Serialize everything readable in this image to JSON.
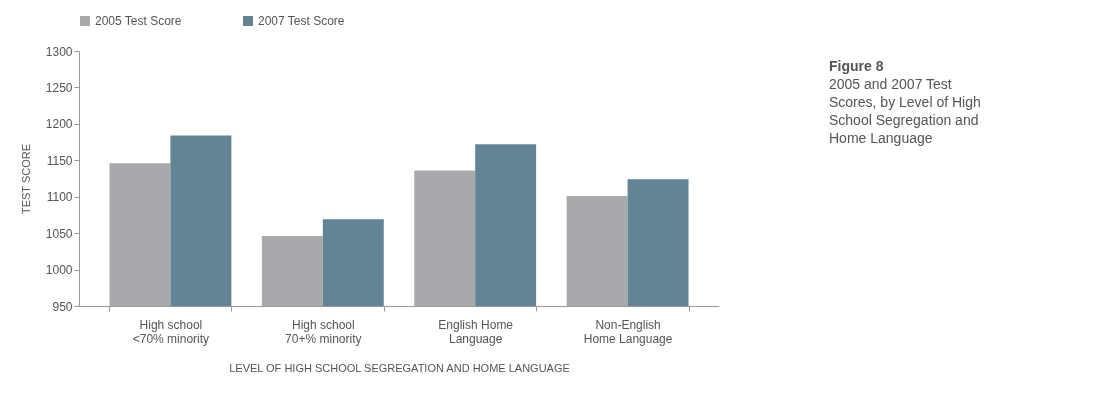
{
  "chart_data": {
    "type": "bar",
    "title": "Figure 8",
    "subtitle": "2005 and 2007 Test Scores, by Level of High School Segregation and Home Language",
    "xlabel": "LEVEL OF HIGH SCHOOL SEGREGATION AND HOME LANGUAGE",
    "ylabel": "TEST SCORE",
    "categories": [
      "High school\n<70% minority",
      "High school\n70+% minority",
      "English Home\nLanguage",
      "Non-English\nHome Language"
    ],
    "series": [
      {
        "name": "2005 Test Score",
        "color": "#a8a9ad",
        "values": [
          1146,
          1046,
          1136,
          1101
        ]
      },
      {
        "name": "2007 Test Score",
        "color": "#628494",
        "values": [
          1184,
          1069,
          1172,
          1124
        ]
      }
    ],
    "ylim": [
      950,
      1300
    ],
    "yticks": [
      950,
      1000,
      1050,
      1100,
      1150,
      1200,
      1250,
      1300
    ],
    "grid": false,
    "legend": "top"
  }
}
